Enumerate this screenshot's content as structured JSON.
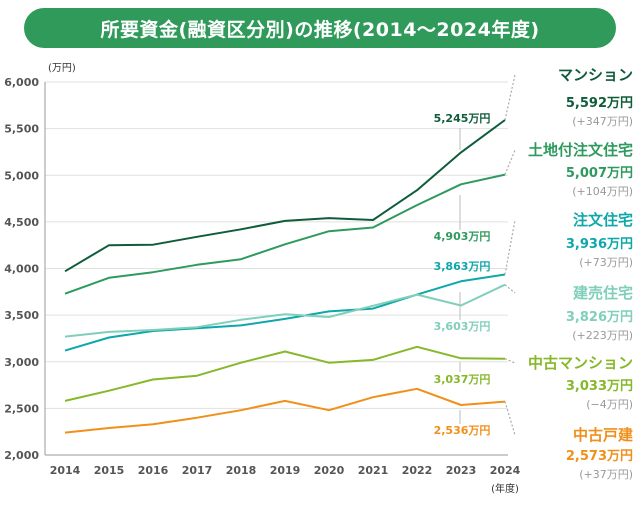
{
  "title": "所要資金(融資区分別)の推移(2014〜2024年度)",
  "chart_data": {
    "type": "line",
    "title": "所要資金(融資区分別)の推移(2014〜2024年度)",
    "y_unit": "(万円)",
    "x_unit": "(年度)",
    "ylim": [
      2000,
      6000
    ],
    "y_ticks": [
      "2,000",
      "2,500",
      "3,000",
      "3,500",
      "4,000",
      "4,500",
      "5,000",
      "5,500",
      "6,000"
    ],
    "categories": [
      "2014",
      "2015",
      "2016",
      "2017",
      "2018",
      "2019",
      "2020",
      "2021",
      "2022",
      "2023",
      "2024"
    ],
    "grid": "horizontal",
    "series": [
      {
        "name": "マンション",
        "color": "#0e5c3a",
        "values": [
          3970,
          4250,
          4255,
          4340,
          4420,
          4510,
          4540,
          4520,
          4840,
          5245,
          5592
        ],
        "final_label": "5,592万円",
        "change_label": "(+347万円)",
        "point_label": "5,245万円"
      },
      {
        "name": "土地付注文住宅",
        "color": "#2e9a5e",
        "values": [
          3730,
          3900,
          3960,
          4040,
          4100,
          4260,
          4400,
          4440,
          4680,
          4903,
          5007
        ],
        "final_label": "5,007万円",
        "change_label": "(+104万円)",
        "point_label": "4,903万円"
      },
      {
        "name": "注文住宅",
        "color": "#0fa7aa",
        "values": [
          3120,
          3260,
          3330,
          3360,
          3390,
          3460,
          3540,
          3570,
          3720,
          3863,
          3936
        ],
        "final_label": "3,936万円",
        "change_label": "(+73万円)",
        "point_label": "3,863万円"
      },
      {
        "name": "建売住宅",
        "color": "#7fcfbb",
        "values": [
          3270,
          3320,
          3340,
          3370,
          3450,
          3510,
          3480,
          3600,
          3720,
          3603,
          3826
        ],
        "final_label": "3,826万円",
        "change_label": "(+223万円)",
        "point_label": "3,603万円"
      },
      {
        "name": "中古マンション",
        "color": "#86b82a",
        "values": [
          2580,
          2690,
          2810,
          2850,
          2990,
          3110,
          2990,
          3020,
          3160,
          3037,
          3033
        ],
        "final_label": "3,033万円",
        "change_label": "(−4万円)",
        "point_label": "3,037万円"
      },
      {
        "name": "中古戸建",
        "color": "#f0901a",
        "values": [
          2240,
          2290,
          2330,
          2400,
          2480,
          2580,
          2480,
          2620,
          2710,
          2536,
          2573
        ],
        "final_label": "2,573万円",
        "change_label": "(+37万円)",
        "point_label": "2,536万円"
      }
    ]
  }
}
